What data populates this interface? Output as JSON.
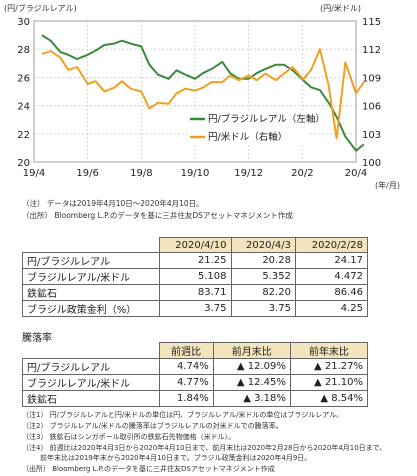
{
  "chart_data": {
    "type": "line",
    "unit_left": "(円/ブラジルレアル)",
    "unit_right": "(円/米ドル)",
    "x_unit": "(年/月)",
    "x_ticks": [
      "19/4",
      "19/6",
      "19/8",
      "19/10",
      "19/12",
      "20/2",
      "20/4"
    ],
    "left_axis": {
      "min": 20,
      "max": 30,
      "ticks": [
        20,
        22,
        24,
        26,
        28,
        30
      ]
    },
    "right_axis": {
      "min": 100,
      "max": 115,
      "ticks": [
        100,
        103,
        106,
        109,
        112,
        115
      ]
    },
    "grid": true,
    "legend": "right-inside",
    "series": [
      {
        "name": "円/ブラジルレアル（左軸）",
        "axis": "left",
        "color": "#3a8a3a",
        "x": [
          "2019-04-10",
          "2019-04-20",
          "2019-05-01",
          "2019-05-10",
          "2019-05-20",
          "2019-06-01",
          "2019-06-10",
          "2019-06-20",
          "2019-07-01",
          "2019-07-10",
          "2019-07-20",
          "2019-08-01",
          "2019-08-10",
          "2019-08-20",
          "2019-09-01",
          "2019-09-10",
          "2019-09-20",
          "2019-10-01",
          "2019-10-10",
          "2019-10-20",
          "2019-11-01",
          "2019-11-10",
          "2019-11-20",
          "2019-12-01",
          "2019-12-10",
          "2019-12-20",
          "2020-01-01",
          "2020-01-10",
          "2020-01-20",
          "2020-02-01",
          "2020-02-10",
          "2020-02-20",
          "2020-03-01",
          "2020-03-10",
          "2020-03-20",
          "2020-04-01",
          "2020-04-10"
        ],
        "values": [
          29.0,
          28.6,
          27.8,
          27.6,
          27.3,
          27.6,
          27.9,
          28.3,
          28.4,
          28.6,
          28.4,
          28.2,
          26.9,
          26.2,
          25.9,
          26.5,
          26.2,
          25.9,
          26.3,
          26.6,
          27.1,
          26.3,
          25.9,
          25.9,
          26.3,
          26.6,
          26.9,
          26.9,
          26.5,
          25.8,
          25.3,
          25.1,
          24.2,
          23.2,
          21.8,
          20.8,
          21.25
        ]
      },
      {
        "name": "円/米ドル（右軸）",
        "axis": "right",
        "color": "#f0a020",
        "x": [
          "2019-04-10",
          "2019-04-20",
          "2019-05-01",
          "2019-05-10",
          "2019-05-20",
          "2019-06-01",
          "2019-06-10",
          "2019-06-20",
          "2019-07-01",
          "2019-07-10",
          "2019-07-20",
          "2019-08-01",
          "2019-08-10",
          "2019-08-20",
          "2019-09-01",
          "2019-09-10",
          "2019-09-20",
          "2019-10-01",
          "2019-10-10",
          "2019-10-20",
          "2019-11-01",
          "2019-11-10",
          "2019-11-20",
          "2019-12-01",
          "2019-12-10",
          "2019-12-20",
          "2020-01-01",
          "2020-01-10",
          "2020-01-20",
          "2020-02-01",
          "2020-02-10",
          "2020-02-20",
          "2020-03-01",
          "2020-03-10",
          "2020-03-20",
          "2020-04-01",
          "2020-04-10"
        ],
        "values": [
          111.5,
          111.8,
          111.1,
          109.8,
          110.1,
          108.3,
          108.6,
          107.5,
          107.9,
          108.6,
          107.8,
          107.5,
          105.7,
          106.3,
          106.2,
          107.3,
          107.8,
          107.6,
          107.9,
          108.5,
          108.5,
          109.2,
          108.7,
          109.2,
          108.7,
          109.4,
          108.7,
          109.4,
          110.1,
          108.8,
          109.8,
          112.0,
          108.1,
          102.5,
          110.6,
          107.3,
          108.5
        ]
      }
    ]
  },
  "notes": [
    "（注）  データは2019年4月10日～2020年4月10日。",
    "（出所）  Bloomberg L.P.のデータを基に三井住友DSアセットマネジメント作成"
  ],
  "table1": {
    "headers": [
      "2020/4/10",
      "2020/4/3",
      "2020/2/28"
    ],
    "rows": [
      {
        "label": "円/ブラジルレアル",
        "values": [
          "21.25",
          "20.28",
          "24.17"
        ]
      },
      {
        "label": "ブラジルレアル/米ドル",
        "values": [
          "5.108",
          "5.352",
          "4.472"
        ]
      },
      {
        "label": "鉄鉱石",
        "values": [
          "83.71",
          "82.20",
          "86.46"
        ]
      },
      {
        "label": "ブラジル政策金利（%）",
        "values": [
          "3.75",
          "3.75",
          "4.25"
        ]
      }
    ]
  },
  "section_label": "騰落率",
  "table2": {
    "headers": [
      "前週比",
      "前月末比",
      "前年末比"
    ],
    "rows": [
      {
        "label": "円/ブラジルレアル",
        "values": [
          "4.74%",
          "▲ 12.09%",
          "▲ 21.27%"
        ]
      },
      {
        "label": "ブラジルレアル/米ドル",
        "values": [
          "4.77%",
          "▲ 12.45%",
          "▲ 21.10%"
        ]
      },
      {
        "label": "鉄鉱石",
        "values": [
          "1.84%",
          "▲ 3.18%",
          "▲ 8.54%"
        ]
      }
    ]
  },
  "footnotes": [
    "（注1）  円/ブラジルレアルと円/米ドルの単位は円、ブラジルレアル/米ドルの単位はブラジルレアル。",
    "（注2）  ブラジルレアル/米ドルの騰落率はブラジルレアルの対米ドルでの騰落率。",
    "（注3）  鉄鉱石はシンガポール取引所の鉄鉱石先物価格（米ドル）。",
    "（注4）  前週比は2020年4月3日から2020年4月10日まで、前月末比は2020年2月28日から2020年4月10日まで、",
    "前年末比は2019年末から2020年4月10日まで。ブラジル政策金利は2020年4月9日。",
    "（出所）  Bloomberg L.P.のデータを基に三井住友DSアセットマネジメント作成"
  ]
}
